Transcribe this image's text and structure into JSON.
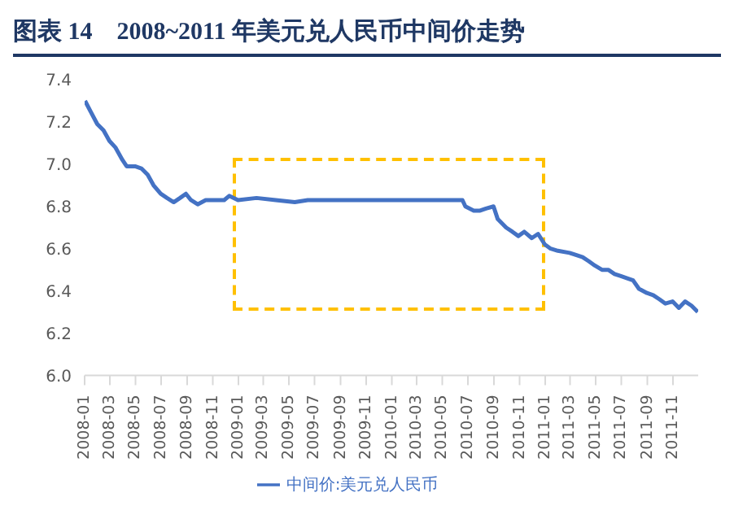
{
  "chart_data": {
    "type": "line",
    "title": "图表 14　2008~2011 年美元兑人民币中间价走势",
    "x": [
      "2008-01-02",
      "2008-01-15",
      "2008-01-31",
      "2008-02-15",
      "2008-02-29",
      "2008-03-14",
      "2008-03-31",
      "2008-04-10",
      "2008-04-30",
      "2008-05-15",
      "2008-05-30",
      "2008-06-13",
      "2008-06-30",
      "2008-07-15",
      "2008-07-31",
      "2008-08-15",
      "2008-08-29",
      "2008-09-10",
      "2008-09-26",
      "2008-10-15",
      "2008-10-31",
      "2008-11-14",
      "2008-11-28",
      "2008-12-10",
      "2008-12-31",
      "2009-02-13",
      "2009-03-31",
      "2009-05-15",
      "2009-06-15",
      "2009-07-31",
      "2009-09-30",
      "2009-11-30",
      "2010-01-29",
      "2010-03-31",
      "2010-05-31",
      "2010-06-18",
      "2010-06-25",
      "2010-07-15",
      "2010-07-30",
      "2010-08-13",
      "2010-08-31",
      "2010-09-10",
      "2010-09-30",
      "2010-10-15",
      "2010-10-29",
      "2010-11-12",
      "2010-11-30",
      "2010-12-15",
      "2010-12-31",
      "2011-01-14",
      "2011-01-31",
      "2011-02-28",
      "2011-03-15",
      "2011-03-31",
      "2011-04-15",
      "2011-04-29",
      "2011-05-16",
      "2011-05-31",
      "2011-06-15",
      "2011-06-30",
      "2011-07-15",
      "2011-07-29",
      "2011-08-12",
      "2011-08-31",
      "2011-09-15",
      "2011-09-30",
      "2011-10-14",
      "2011-10-31",
      "2011-11-15",
      "2011-11-30",
      "2011-12-15",
      "2011-12-30"
    ],
    "series": [
      {
        "name": "中间价:美元兑人民币",
        "color": "#4472c4",
        "values": [
          7.3,
          7.25,
          7.19,
          7.16,
          7.11,
          7.08,
          7.02,
          6.99,
          6.99,
          6.98,
          6.95,
          6.9,
          6.86,
          6.84,
          6.82,
          6.84,
          6.86,
          6.83,
          6.81,
          6.83,
          6.83,
          6.83,
          6.83,
          6.85,
          6.83,
          6.84,
          6.83,
          6.82,
          6.83,
          6.83,
          6.83,
          6.83,
          6.83,
          6.83,
          6.83,
          6.83,
          6.8,
          6.78,
          6.78,
          6.79,
          6.8,
          6.74,
          6.7,
          6.68,
          6.66,
          6.68,
          6.65,
          6.67,
          6.62,
          6.6,
          6.59,
          6.58,
          6.57,
          6.56,
          6.54,
          6.52,
          6.5,
          6.5,
          6.48,
          6.47,
          6.46,
          6.45,
          6.41,
          6.39,
          6.38,
          6.36,
          6.34,
          6.35,
          6.32,
          6.35,
          6.33,
          6.3
        ]
      }
    ],
    "xlim": [
      "2008-01-01",
      "2011-12-31"
    ],
    "xticks": [
      "2008-01",
      "2008-03",
      "2008-05",
      "2008-07",
      "2008-09",
      "2008-11",
      "2009-01",
      "2009-03",
      "2009-05",
      "2009-07",
      "2009-09",
      "2009-11",
      "2010-01",
      "2010-03",
      "2010-05",
      "2010-07",
      "2010-09",
      "2010-11",
      "2011-01",
      "2011-03",
      "2011-05",
      "2011-07",
      "2011-09",
      "2011-11"
    ],
    "ylim": [
      6.0,
      7.4
    ],
    "yticks": [
      {
        "value": 6.0,
        "label": "6.0"
      },
      {
        "value": 6.2,
        "label": "6.2"
      },
      {
        "value": 6.4,
        "label": "6.4"
      },
      {
        "value": 6.6,
        "label": "6.6"
      },
      {
        "value": 6.8,
        "label": "6.8"
      },
      {
        "value": 7.0,
        "label": "7.0"
      },
      {
        "value": 7.2,
        "label": "7.2"
      },
      {
        "value": 7.4,
        "label": "7.4"
      }
    ],
    "grid": false,
    "legend": "bottom",
    "marker": "none",
    "line_style": "solid"
  }
}
